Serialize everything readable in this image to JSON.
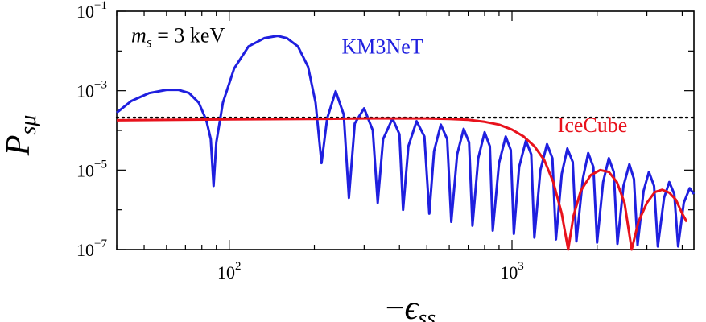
{
  "chart_data": {
    "type": "line",
    "x_scale": "log",
    "y_scale": "log",
    "xlim": [
      40,
      4400
    ],
    "ylim": [
      1e-07,
      0.1
    ],
    "x_major_ticks": [
      {
        "value": 100,
        "base": "10",
        "exp": "2"
      },
      {
        "value": 1000,
        "base": "10",
        "exp": "3"
      }
    ],
    "y_major_ticks": [
      {
        "value": 0.1,
        "base": "10",
        "exp": "−1"
      },
      {
        "value": 0.001,
        "base": "10",
        "exp": "−3"
      },
      {
        "value": 1e-05,
        "base": "10",
        "exp": "−5"
      },
      {
        "value": 1e-07,
        "base": "10",
        "exp": "−7"
      }
    ],
    "xlabel": {
      "prefix": "−",
      "symbol": "ϵ",
      "subscript": "ss"
    },
    "ylabel": {
      "symbol": "P",
      "subscript": "sμ"
    },
    "grid": false,
    "annotations": [
      {
        "id": "mass",
        "symbol": "m",
        "subscript": "s",
        "rest": " = 3 keV",
        "x": 45,
        "y": 0.025
      }
    ],
    "series": [
      {
        "name": "KM3NeT",
        "color": "#1f1fdf",
        "label_at": {
          "x": 250,
          "y": 0.013
        },
        "points": [
          [
            40,
            0.00028
          ],
          [
            45,
            0.00055
          ],
          [
            52,
            0.00087
          ],
          [
            60,
            0.00105
          ],
          [
            66,
            0.00105
          ],
          [
            72,
            0.00088
          ],
          [
            78,
            0.0005
          ],
          [
            83,
            0.00018
          ],
          [
            86,
            6e-05
          ],
          [
            88,
            4e-06
          ],
          [
            90,
            5e-05
          ],
          [
            95,
            0.0005
          ],
          [
            104,
            0.0036
          ],
          [
            117,
            0.013
          ],
          [
            133,
            0.021
          ],
          [
            148,
            0.024
          ],
          [
            160,
            0.021
          ],
          [
            175,
            0.013
          ],
          [
            190,
            0.004
          ],
          [
            202,
            0.0005
          ],
          [
            212,
            1.5e-05
          ],
          [
            222,
            0.0002
          ],
          [
            238,
            0.00097
          ],
          [
            254,
            0.00025
          ],
          [
            265,
            2e-06
          ],
          [
            278,
            0.00015
          ],
          [
            300,
            0.00036
          ],
          [
            322,
            0.0001
          ],
          [
            335,
            1.5e-06
          ],
          [
            350,
            6e-05
          ],
          [
            378,
            0.0002
          ],
          [
            400,
            8e-05
          ],
          [
            412,
            1e-06
          ],
          [
            430,
            4e-05
          ],
          [
            460,
            0.00017
          ],
          [
            490,
            7e-05
          ],
          [
            510,
            8e-07
          ],
          [
            530,
            3e-05
          ],
          [
            560,
            0.00014
          ],
          [
            590,
            6e-05
          ],
          [
            610,
            5e-07
          ],
          [
            640,
            2.5e-05
          ],
          [
            675,
            0.00011
          ],
          [
            705,
            5e-05
          ],
          [
            725,
            4e-07
          ],
          [
            760,
            2e-05
          ],
          [
            800,
            9e-05
          ],
          [
            835,
            4e-05
          ],
          [
            855,
            3e-07
          ],
          [
            900,
            1.5e-05
          ],
          [
            950,
            7e-05
          ],
          [
            990,
            3.2e-05
          ],
          [
            1015,
            2.5e-07
          ],
          [
            1060,
            1.2e-05
          ],
          [
            1120,
            5.5e-05
          ],
          [
            1170,
            2.5e-05
          ],
          [
            1200,
            2e-07
          ],
          [
            1260,
            1e-05
          ],
          [
            1330,
            4.5e-05
          ],
          [
            1390,
            2e-05
          ],
          [
            1430,
            1.8e-07
          ],
          [
            1500,
            8e-06
          ],
          [
            1570,
            3.5e-05
          ],
          [
            1640,
            1.6e-05
          ],
          [
            1690,
            1.6e-07
          ],
          [
            1780,
            6e-06
          ],
          [
            1860,
            2.7e-05
          ],
          [
            1940,
            1.2e-05
          ],
          [
            2000,
            1.5e-07
          ],
          [
            2100,
            5e-06
          ],
          [
            2200,
            2e-05
          ],
          [
            2290,
            9e-06
          ],
          [
            2360,
            1.4e-07
          ],
          [
            2480,
            4e-06
          ],
          [
            2600,
            1.4e-05
          ],
          [
            2700,
            6e-06
          ],
          [
            2780,
            1.3e-07
          ],
          [
            2920,
            3e-06
          ],
          [
            3050,
            9e-06
          ],
          [
            3180,
            4e-06
          ],
          [
            3280,
            1.2e-07
          ],
          [
            3450,
            2e-06
          ],
          [
            3600,
            5e-06
          ],
          [
            3750,
            2.5e-06
          ],
          [
            3870,
            1.2e-07
          ],
          [
            4050,
            1.5e-06
          ],
          [
            4250,
            3.5e-06
          ],
          [
            4400,
            2.5e-06
          ]
        ]
      },
      {
        "name": "IceCube",
        "color": "#e8121c",
        "label_at": {
          "x": 1450,
          "y": 0.00014
        },
        "points": [
          [
            40,
            0.00018
          ],
          [
            100,
            0.00019
          ],
          [
            200,
            0.000195
          ],
          [
            300,
            0.0002
          ],
          [
            400,
            0.0002
          ],
          [
            500,
            0.0002
          ],
          [
            600,
            0.000195
          ],
          [
            700,
            0.000185
          ],
          [
            800,
            0.000165
          ],
          [
            900,
            0.00014
          ],
          [
            1000,
            0.000105
          ],
          [
            1100,
            7e-05
          ],
          [
            1200,
            4e-05
          ],
          [
            1300,
            1.8e-05
          ],
          [
            1400,
            5e-06
          ],
          [
            1500,
            8e-07
          ],
          [
            1580,
            1e-07
          ],
          [
            1650,
            7e-07
          ],
          [
            1750,
            3e-06
          ],
          [
            1900,
            7.5e-06
          ],
          [
            2050,
            1e-05
          ],
          [
            2200,
            9e-06
          ],
          [
            2350,
            5e-06
          ],
          [
            2500,
            1.5e-06
          ],
          [
            2650,
            1e-07
          ],
          [
            2800,
            5e-07
          ],
          [
            3000,
            1.5e-06
          ],
          [
            3200,
            2.8e-06
          ],
          [
            3400,
            3.2e-06
          ],
          [
            3600,
            2.7e-06
          ],
          [
            3800,
            1.8e-06
          ],
          [
            4000,
            8e-07
          ],
          [
            4150,
            5e-07
          ]
        ]
      }
    ],
    "reference_line": {
      "style": "dotted",
      "color": "#000000",
      "y": 0.00021,
      "x_range": [
        40,
        4400
      ]
    }
  }
}
